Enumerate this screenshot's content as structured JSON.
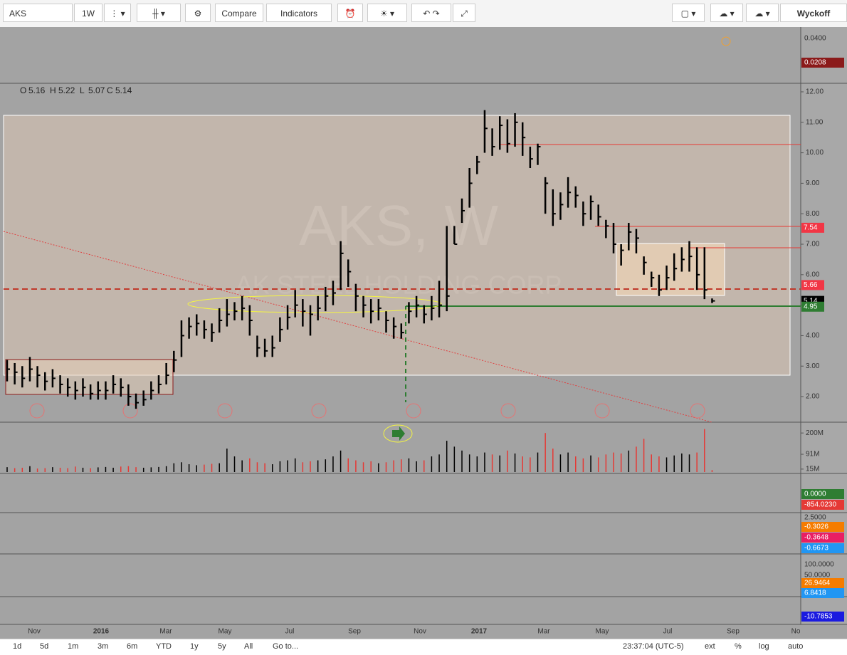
{
  "toolbar": {
    "symbol": "AKS",
    "interval": "1W",
    "compare": "Compare",
    "indicators": "Indicators",
    "template": "Wyckoff"
  },
  "legend": {
    "o_label": "O",
    "o": 5.16,
    "h_label": "H",
    "h": 5.22,
    "l_label": "L",
    "l": 5.07,
    "c_label": "C",
    "c": 5.14
  },
  "watermark": {
    "symbol": "AKS, W",
    "name": "AK STEEL HOLDING CORP"
  },
  "chart_data": {
    "type": "ohlc",
    "high": [
      3.2,
      3.1,
      3.0,
      3.3,
      3.0,
      2.8,
      2.9,
      2.7,
      2.6,
      2.5,
      2.6,
      2.4,
      2.5,
      2.5,
      2.7,
      2.6,
      2.4,
      2.1,
      2.2,
      2.5,
      2.7,
      3.1,
      3.5,
      4.5,
      4.6,
      4.7,
      4.5,
      4.4,
      4.9,
      5.2,
      5.1,
      5.3,
      5.0,
      4.0,
      3.9,
      4.0,
      4.6,
      5.0,
      5.5,
      5.2,
      5.0,
      5.3,
      5.6,
      5.8,
      7.1,
      6.5,
      5.7,
      5.3,
      5.2,
      5.2,
      4.8,
      4.6,
      4.4,
      5.1,
      5.3,
      5.0,
      5.3,
      5.8,
      7.6,
      7.6,
      8.5,
      9.5,
      9.9,
      11.4,
      10.8,
      11.2,
      11.1,
      11.3,
      11.0,
      10.2,
      10.3,
      9.2,
      8.8,
      8.7,
      9.2,
      8.9,
      8.4,
      8.6,
      8.3,
      7.8,
      7.7,
      7.0,
      7.7,
      7.5,
      6.6,
      6.1,
      6.0,
      6.3,
      6.7,
      6.9,
      7.1,
      6.9,
      6.9,
      5.22
    ],
    "low": [
      2.5,
      2.4,
      2.3,
      2.5,
      2.3,
      2.2,
      2.3,
      2.1,
      2.0,
      1.9,
      2.0,
      1.9,
      1.9,
      1.9,
      2.1,
      2.0,
      1.7,
      1.6,
      1.7,
      1.9,
      2.1,
      2.4,
      2.8,
      3.3,
      3.9,
      4.0,
      3.9,
      3.8,
      4.1,
      4.3,
      4.5,
      4.5,
      4.0,
      3.3,
      3.3,
      3.3,
      3.8,
      4.2,
      4.6,
      4.3,
      4.0,
      4.5,
      4.8,
      5.0,
      5.5,
      5.6,
      4.8,
      4.6,
      4.4,
      4.5,
      4.1,
      3.9,
      3.9,
      4.4,
      4.6,
      4.4,
      4.5,
      4.6,
      4.8,
      7.0,
      7.7,
      8.2,
      9.3,
      10.0,
      9.9,
      10.1,
      10.0,
      10.2,
      9.9,
      9.5,
      9.6,
      8.0,
      7.6,
      7.8,
      8.2,
      8.2,
      7.6,
      7.8,
      7.6,
      7.2,
      6.7,
      6.3,
      6.8,
      6.7,
      6.0,
      5.6,
      5.3,
      5.5,
      5.8,
      6.1,
      6.1,
      5.5,
      5.2,
      5.07
    ],
    "close": [
      2.9,
      2.8,
      2.6,
      2.9,
      2.7,
      2.5,
      2.6,
      2.4,
      2.3,
      2.2,
      2.3,
      2.1,
      2.2,
      2.2,
      2.4,
      2.3,
      2.0,
      1.8,
      1.9,
      2.2,
      2.4,
      2.7,
      3.2,
      4.0,
      4.3,
      4.4,
      4.2,
      4.1,
      4.5,
      4.7,
      4.8,
      4.9,
      4.5,
      3.6,
      3.5,
      3.6,
      4.2,
      4.6,
      5.0,
      4.8,
      4.7,
      4.9,
      5.3,
      5.4,
      6.7,
      6.1,
      5.3,
      5.0,
      4.8,
      4.9,
      4.5,
      4.3,
      4.1,
      4.8,
      5.0,
      4.7,
      4.9,
      5.0,
      5.3,
      7.0,
      8.1,
      9.0,
      9.7,
      10.8,
      10.2,
      10.9,
      10.3,
      11.0,
      10.5,
      9.8,
      10.2,
      9.0,
      8.0,
      8.3,
      8.7,
      8.6,
      8.0,
      8.4,
      7.9,
      7.6,
      7.0,
      6.8,
      7.4,
      7.2,
      6.4,
      5.9,
      5.5,
      5.9,
      6.2,
      6.5,
      6.6,
      6.0,
      5.5,
      5.14
    ],
    "volume": [
      25,
      20,
      22,
      30,
      18,
      20,
      25,
      22,
      20,
      28,
      22,
      20,
      24,
      26,
      22,
      28,
      30,
      25,
      22,
      24,
      26,
      30,
      45,
      50,
      40,
      35,
      38,
      42,
      45,
      120,
      80,
      60,
      70,
      50,
      45,
      40,
      55,
      60,
      70,
      50,
      55,
      60,
      65,
      80,
      110,
      70,
      60,
      50,
      55,
      45,
      50,
      60,
      65,
      70,
      55,
      60,
      80,
      90,
      160,
      130,
      110,
      90,
      80,
      100,
      90,
      85,
      110,
      95,
      80,
      75,
      100,
      200,
      120,
      90,
      100,
      80,
      70,
      85,
      75,
      90,
      100,
      95,
      110,
      130,
      170,
      90,
      80,
      75,
      85,
      95,
      90,
      100,
      220,
      10
    ],
    "bar_color": "#000000",
    "up_color": "#000000",
    "down_color": "#e53935",
    "ylim": [
      1.16,
      12.28
    ],
    "yticks": [
      {
        "value": 12,
        "label": "12.00"
      },
      {
        "value": 11,
        "label": "11.00"
      },
      {
        "value": 10,
        "label": "10.00"
      },
      {
        "value": 9,
        "label": "9.00"
      },
      {
        "value": 8,
        "label": "8.00"
      },
      {
        "value": 7,
        "label": "7.00"
      },
      {
        "value": 6,
        "label": "6.00"
      },
      {
        "value": 5,
        "label": "5.00"
      },
      {
        "value": 4,
        "label": "4.00"
      },
      {
        "value": 3,
        "label": "3.00"
      },
      {
        "value": 2,
        "label": "2.00"
      }
    ],
    "price_markers": [
      7.54,
      5.66,
      5.14,
      4.95
    ],
    "marker_colors": [
      "#f23645",
      "#f23645",
      "#000000",
      "#2e7d32"
    ],
    "volume_lim": [
      0,
      248
    ],
    "volume_ticks": [
      {
        "value": 200,
        "label": "200M"
      },
      {
        "value": 91,
        "label": "91M"
      },
      {
        "value": 15,
        "label": "15M"
      }
    ],
    "x_labels": [
      "Nov",
      "2016",
      "Mar",
      "May",
      "Jul",
      "Sep",
      "Nov",
      "2017",
      "Mar",
      "May",
      "Jul",
      "Sep",
      "No"
    ]
  },
  "panel_labels": [
    "0.0400",
    "0.0208",
    "0.0000",
    "-854.0230",
    "2.5000",
    "-0.3026",
    "-0.3648",
    "-0.6673",
    "100.0000",
    "50.0000",
    "26.9464",
    "6.8418",
    "-10.7853"
  ],
  "bottom_bar": {
    "ranges": [
      "1d",
      "5d",
      "1m",
      "3m",
      "6m",
      "YTD",
      "1y",
      "5y",
      "All"
    ],
    "goto": "Go to...",
    "clock": "23:37:04 (UTC-5)",
    "ext": "ext",
    "percent": "%",
    "log": "log",
    "auto": "auto"
  }
}
